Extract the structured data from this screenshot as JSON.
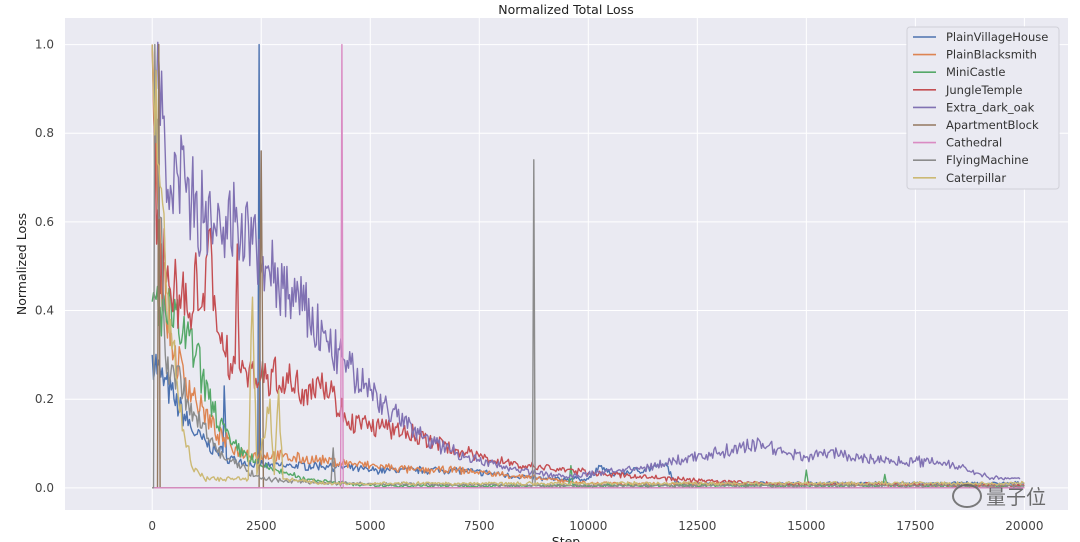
{
  "chart_data": {
    "type": "line",
    "title": "Normalized Total Loss",
    "xlabel": "Step",
    "ylabel": "Normalized Loss",
    "xlim": [
      -2000,
      21000
    ],
    "ylim": [
      -0.05,
      1.06
    ],
    "xticks": [
      0,
      2500,
      5000,
      7500,
      10000,
      12500,
      15000,
      17500,
      20000
    ],
    "xtick_labels": [
      "0",
      "2500",
      "5000",
      "7500",
      "10000",
      "12500",
      "15000",
      "17500",
      "20000"
    ],
    "yticks": [
      0,
      0.2,
      0.4,
      0.6,
      0.8,
      1.0
    ],
    "ytick_labels": [
      "0.0",
      "0.2",
      "0.4",
      "0.6",
      "0.8",
      "1.0"
    ],
    "grid": true,
    "legend_position": "top-right",
    "series": [
      {
        "name": "PlainVillageHouse",
        "color": "#4c72b0",
        "points": [
          [
            0,
            0.3
          ],
          [
            200,
            0.25
          ],
          [
            500,
            0.2
          ],
          [
            1000,
            0.12
          ],
          [
            1500,
            0.08
          ],
          [
            1620,
            0.08
          ],
          [
            1650,
            0.23
          ],
          [
            1700,
            0.07
          ],
          [
            2000,
            0.06
          ],
          [
            2420,
            0.05
          ],
          [
            2450,
            1.0
          ],
          [
            2480,
            0.05
          ],
          [
            3000,
            0.05
          ],
          [
            4000,
            0.05
          ],
          [
            5000,
            0.04
          ],
          [
            7000,
            0.04
          ],
          [
            8000,
            0.03
          ],
          [
            9000,
            0.02
          ],
          [
            10000,
            0.02
          ],
          [
            10300,
            0.05
          ],
          [
            10500,
            0.03
          ],
          [
            11800,
            0.05
          ],
          [
            12000,
            0.01
          ],
          [
            20000,
            0.01
          ]
        ]
      },
      {
        "name": "PlainBlacksmith",
        "color": "#dd8452",
        "points": [
          [
            0,
            1.0
          ],
          [
            200,
            0.5
          ],
          [
            500,
            0.3
          ],
          [
            1000,
            0.2
          ],
          [
            1500,
            0.12
          ],
          [
            2000,
            0.08
          ],
          [
            3000,
            0.07
          ],
          [
            4000,
            0.06
          ],
          [
            5000,
            0.05
          ],
          [
            6000,
            0.04
          ],
          [
            7000,
            0.04
          ],
          [
            8000,
            0.03
          ],
          [
            9000,
            0.02
          ],
          [
            10000,
            0.01
          ],
          [
            20000,
            0.005
          ]
        ]
      },
      {
        "name": "MiniCastle",
        "color": "#55a868",
        "points": [
          [
            0,
            0.42
          ],
          [
            300,
            0.4
          ],
          [
            700,
            0.35
          ],
          [
            1000,
            0.3
          ],
          [
            1300,
            0.2
          ],
          [
            1800,
            0.1
          ],
          [
            2500,
            0.05
          ],
          [
            3500,
            0.02
          ],
          [
            5000,
            0.005
          ],
          [
            9550,
            0.005
          ],
          [
            9600,
            0.05
          ],
          [
            9650,
            0.005
          ],
          [
            14950,
            0.005
          ],
          [
            15000,
            0.04
          ],
          [
            15050,
            0.005
          ],
          [
            16750,
            0.005
          ],
          [
            16800,
            0.03
          ],
          [
            16850,
            0.005
          ],
          [
            20000,
            0.005
          ]
        ]
      },
      {
        "name": "JungleTemple",
        "color": "#c44e52",
        "points": [
          [
            0,
            1.0
          ],
          [
            100,
            0.55
          ],
          [
            300,
            0.5
          ],
          [
            500,
            0.45
          ],
          [
            800,
            0.4
          ],
          [
            950,
            0.4
          ],
          [
            1000,
            0.53
          ],
          [
            1050,
            0.4
          ],
          [
            1200,
            0.4
          ],
          [
            1300,
            0.58
          ],
          [
            1400,
            0.4
          ],
          [
            1600,
            0.35
          ],
          [
            1800,
            0.28
          ],
          [
            1900,
            0.28
          ],
          [
            1950,
            0.55
          ],
          [
            2000,
            0.27
          ],
          [
            2100,
            0.27
          ],
          [
            2500,
            0.25
          ],
          [
            3000,
            0.25
          ],
          [
            3500,
            0.22
          ],
          [
            3800,
            0.25
          ],
          [
            4200,
            0.2
          ],
          [
            4500,
            0.15
          ],
          [
            5000,
            0.14
          ],
          [
            6000,
            0.12
          ],
          [
            6500,
            0.1
          ],
          [
            7500,
            0.07
          ],
          [
            8500,
            0.05
          ],
          [
            9500,
            0.04
          ],
          [
            10500,
            0.03
          ],
          [
            12000,
            0.02
          ],
          [
            14000,
            0.01
          ],
          [
            20000,
            0.005
          ]
        ]
      },
      {
        "name": "Extra_dark_oak",
        "color": "#8172b3",
        "points": [
          [
            100,
            0.9
          ],
          [
            300,
            0.75
          ],
          [
            600,
            0.7
          ],
          [
            900,
            0.65
          ],
          [
            1200,
            0.6
          ],
          [
            1600,
            0.55
          ],
          [
            1900,
            0.6
          ],
          [
            2300,
            0.55
          ],
          [
            2600,
            0.5
          ],
          [
            3000,
            0.45
          ],
          [
            3500,
            0.4
          ],
          [
            4000,
            0.33
          ],
          [
            4500,
            0.27
          ],
          [
            5000,
            0.22
          ],
          [
            5500,
            0.17
          ],
          [
            6000,
            0.13
          ],
          [
            6500,
            0.1
          ],
          [
            7000,
            0.08
          ],
          [
            7500,
            0.06
          ],
          [
            8000,
            0.05
          ],
          [
            8500,
            0.04
          ],
          [
            9000,
            0.03
          ],
          [
            9500,
            0.025
          ],
          [
            10000,
            0.03
          ],
          [
            10500,
            0.04
          ],
          [
            11000,
            0.04
          ],
          [
            11500,
            0.05
          ],
          [
            12000,
            0.06
          ],
          [
            12500,
            0.07
          ],
          [
            13000,
            0.08
          ],
          [
            13500,
            0.09
          ],
          [
            14000,
            0.1
          ],
          [
            14500,
            0.08
          ],
          [
            15000,
            0.07
          ],
          [
            15500,
            0.08
          ],
          [
            16000,
            0.07
          ],
          [
            16500,
            0.065
          ],
          [
            17000,
            0.06
          ],
          [
            17500,
            0.06
          ],
          [
            18000,
            0.06
          ],
          [
            18500,
            0.05
          ],
          [
            19000,
            0.03
          ],
          [
            19500,
            0.02
          ],
          [
            19900,
            0.02
          ]
        ]
      },
      {
        "name": "ApartmentBlock",
        "color": "#937860",
        "points": [
          [
            0,
            0
          ],
          [
            120,
            0
          ],
          [
            150,
            1.0
          ],
          [
            180,
            0
          ],
          [
            2450,
            0
          ],
          [
            2500,
            0.76
          ],
          [
            2550,
            0
          ],
          [
            20000,
            0
          ]
        ]
      },
      {
        "name": "Cathedral",
        "color": "#da8bc3",
        "points": [
          [
            0,
            0
          ],
          [
            4320,
            0
          ],
          [
            4350,
            1.0
          ],
          [
            4380,
            0
          ],
          [
            20000,
            0
          ]
        ]
      },
      {
        "name": "FlyingMachine",
        "color": "#8c8c8c",
        "points": [
          [
            0,
            0
          ],
          [
            30,
            0
          ],
          [
            60,
            1.0
          ],
          [
            300,
            0.3
          ],
          [
            800,
            0.2
          ],
          [
            1500,
            0.08
          ],
          [
            2500,
            0.02
          ],
          [
            4100,
            0.01
          ],
          [
            4150,
            0.09
          ],
          [
            4200,
            0.01
          ],
          [
            8720,
            0.005
          ],
          [
            8750,
            0.74
          ],
          [
            8780,
            0.005
          ],
          [
            20000,
            0.005
          ]
        ]
      },
      {
        "name": "Caterpillar",
        "color": "#ccb974",
        "points": [
          [
            0,
            1.0
          ],
          [
            300,
            0.5
          ],
          [
            600,
            0.2
          ],
          [
            900,
            0.05
          ],
          [
            1200,
            0.02
          ],
          [
            2200,
            0.02
          ],
          [
            2300,
            0.43
          ],
          [
            2400,
            0.03
          ],
          [
            2700,
            0.2
          ],
          [
            2800,
            0.03
          ],
          [
            2900,
            0.22
          ],
          [
            3000,
            0.02
          ],
          [
            4000,
            0.01
          ],
          [
            20000,
            0.01
          ]
        ]
      }
    ]
  },
  "watermark": {
    "text": "量子位",
    "icon": "wechat-icon"
  }
}
